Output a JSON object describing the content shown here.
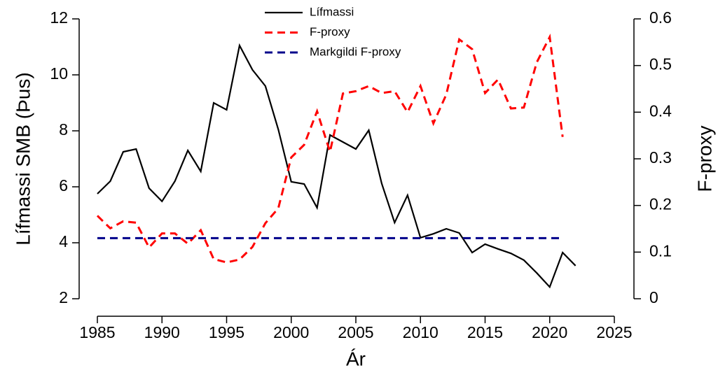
{
  "chart_data": {
    "type": "line",
    "x_label": "Ár",
    "y_label": "Lífmassi SMB (Þus)",
    "y2_label": "F-proxy",
    "x": [
      1985,
      1986,
      1987,
      1988,
      1989,
      1990,
      1991,
      1992,
      1993,
      1994,
      1995,
      1996,
      1997,
      1998,
      1999,
      2000,
      2001,
      2002,
      2003,
      2004,
      2005,
      2006,
      2007,
      2008,
      2009,
      2010,
      2011,
      2012,
      2013,
      2014,
      2015,
      2016,
      2017,
      2018,
      2019,
      2020,
      2021,
      2022
    ],
    "series": [
      {
        "name": "Lífmassi",
        "color": "#000000",
        "dash": "solid",
        "values": [
          5.75,
          6.2,
          7.25,
          7.35,
          5.95,
          5.48,
          6.2,
          7.3,
          6.55,
          9.0,
          8.75,
          11.05,
          10.18,
          9.6,
          8.05,
          6.18,
          6.1,
          5.25,
          7.85,
          7.6,
          7.35,
          8.02,
          6.12,
          4.72,
          5.7,
          4.18,
          4.32,
          4.5,
          4.35,
          3.65,
          3.95,
          3.78,
          3.62,
          3.38,
          2.92,
          2.42,
          3.65,
          3.18
        ]
      },
      {
        "name": "F-proxy",
        "color": "#ff0000",
        "dash": "dashed",
        "axis": "y2",
        "values": [
          0.178,
          0.151,
          0.166,
          0.163,
          0.11,
          0.14,
          0.14,
          0.118,
          0.147,
          0.085,
          0.078,
          0.084,
          0.111,
          0.162,
          0.194,
          0.303,
          0.33,
          0.402,
          0.315,
          0.44,
          0.445,
          0.456,
          0.441,
          0.445,
          0.4,
          0.456,
          0.376,
          0.438,
          0.556,
          0.535,
          0.441,
          0.47,
          0.408,
          0.41,
          0.507,
          0.561,
          0.347,
          null
        ]
      },
      {
        "name": "Markgildi F-proxy",
        "color": "#00008b",
        "dash": "dashed",
        "axis": "y2",
        "values": [
          0.13,
          0.13,
          0.13,
          0.13,
          0.13,
          0.13,
          0.13,
          0.13,
          0.13,
          0.13,
          0.13,
          0.13,
          0.13,
          0.13,
          0.13,
          0.13,
          0.13,
          0.13,
          0.13,
          0.13,
          0.13,
          0.13,
          0.13,
          0.13,
          0.13,
          0.13,
          0.13,
          0.13,
          0.13,
          0.13,
          0.13,
          0.13,
          0.13,
          0.13,
          0.13,
          0.13,
          0.13,
          null
        ]
      }
    ],
    "xlim": [
      1985,
      2025
    ],
    "xticks": [
      1985,
      1990,
      1995,
      2000,
      2005,
      2010,
      2015,
      2020,
      2025
    ],
    "ylim": [
      2,
      12
    ],
    "yticks": [
      2,
      4,
      6,
      8,
      10,
      12
    ],
    "y2lim": [
      0,
      0.6
    ],
    "y2ticks": [
      0,
      0.1,
      0.2,
      0.3,
      0.4,
      0.5,
      0.6
    ],
    "legend": "top"
  }
}
